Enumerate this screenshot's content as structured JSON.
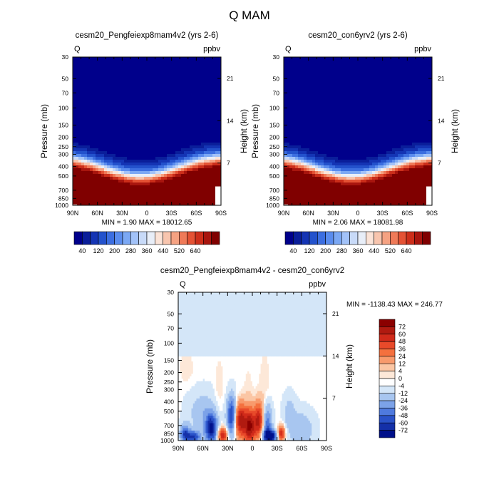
{
  "figure": {
    "title": "Q MAM"
  },
  "chart_data": [
    {
      "type": "heatmap",
      "title": "cesm20_Pengfeiexp8mam4v2 (yrs 2-6)",
      "left_label": "Q",
      "units": "ppbv",
      "ylabel": "Pressure (mb)",
      "ylabel_right": "Height (km)",
      "x_ticks": [
        "90N",
        "60N",
        "30N",
        "0",
        "30S",
        "60S",
        "90S"
      ],
      "y_ticks": [
        "30",
        "50",
        "70",
        "100",
        "150",
        "200",
        "250",
        "300",
        "400",
        "500",
        "700",
        "850",
        "1000"
      ],
      "y_ticks_right": [
        "21",
        "14",
        "7"
      ],
      "xlim": [
        90,
        -90
      ],
      "ylim": [
        1000,
        30
      ],
      "stats": "MIN =   1.90  MAX = 18012.65",
      "colorbar": {
        "labels": [
          "40",
          "120",
          "200",
          "280",
          "360",
          "440",
          "520",
          "640"
        ],
        "colors": [
          "#00008b",
          "#0a1e9a",
          "#1434b4",
          "#2352cc",
          "#3c6ee0",
          "#5a8cee",
          "#7ba8f4",
          "#a2c2f8",
          "#c8daf8",
          "#e8eef8",
          "#fbe3d7",
          "#f8c5ae",
          "#f5a282",
          "#ef7a58",
          "#e45234",
          "#cc2e1a",
          "#a8150e",
          "#800000"
        ]
      },
      "field": {
        "description_free": true,
        "max_q_ppbv": 18012.65,
        "min_q_ppbv": 1.9
      }
    },
    {
      "type": "heatmap",
      "title": "cesm20_con6yrv2 (yrs 2-6)",
      "left_label": "Q",
      "units": "ppbv",
      "ylabel": "Pressure (mb)",
      "ylabel_right": "Height (km)",
      "x_ticks": [
        "90N",
        "60N",
        "30N",
        "0",
        "30S",
        "60S",
        "90S"
      ],
      "y_ticks": [
        "30",
        "50",
        "70",
        "100",
        "150",
        "200",
        "250",
        "300",
        "400",
        "500",
        "700",
        "850",
        "1000"
      ],
      "y_ticks_right": [
        "21",
        "14",
        "7"
      ],
      "xlim": [
        90,
        -90
      ],
      "ylim": [
        1000,
        30
      ],
      "stats": "MIN =   2.06  MAX = 18081.98",
      "colorbar": {
        "labels": [
          "40",
          "120",
          "200",
          "280",
          "360",
          "440",
          "520",
          "640"
        ]
      },
      "field": {
        "max_q_ppbv": 18081.98,
        "min_q_ppbv": 2.06
      }
    },
    {
      "type": "heatmap",
      "title": "cesm20_Pengfeiexp8mam4v2 - cesm20_con6yrv2",
      "left_label": "Q",
      "units": "ppbv",
      "ylabel": "Pressure (mb)",
      "ylabel_right": "Height (km)",
      "x_ticks": [
        "90N",
        "60N",
        "30N",
        "0",
        "30S",
        "60S",
        "90S"
      ],
      "y_ticks": [
        "30",
        "50",
        "70",
        "100",
        "150",
        "200",
        "250",
        "300",
        "400",
        "500",
        "700",
        "850",
        "1000"
      ],
      "y_ticks_right": [
        "21",
        "14",
        "7"
      ],
      "xlim": [
        90,
        -90
      ],
      "ylim": [
        1000,
        30
      ],
      "stats": "MIN = -1138.43  MAX = 246.77",
      "colorbar": {
        "labels": [
          "72",
          "60",
          "48",
          "36",
          "24",
          "12",
          "4",
          "0",
          "-4",
          "-12",
          "-24",
          "-36",
          "-48",
          "-60",
          "-72"
        ],
        "colors": [
          "#8b0000",
          "#b01a10",
          "#d02a1a",
          "#e84a2a",
          "#f4703e",
          "#f89a6c",
          "#fbc6a4",
          "#fde8d8",
          "#ffffff",
          "#d4e6f8",
          "#a8c6f0",
          "#7ca2e8",
          "#4f7ade",
          "#2a52c8",
          "#1430a8",
          "#00108a"
        ]
      }
    }
  ]
}
